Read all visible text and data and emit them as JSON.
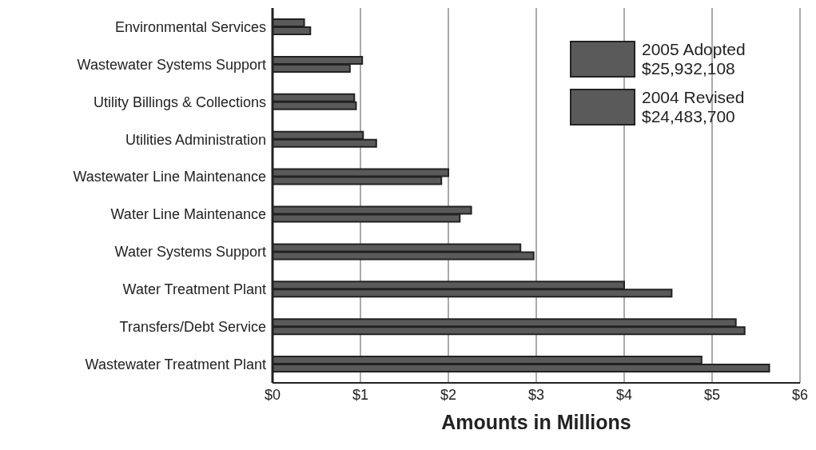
{
  "chart_data": {
    "type": "bar",
    "orientation": "horizontal",
    "xlabel": "Amounts in Millions",
    "categories": [
      "Environmental Services",
      "Wastewater Systems Support",
      "Utility Billings & Collections",
      "Utilities Administration",
      "Wastewater Line Maintenance",
      "Water Line Maintenance",
      "Water Systems Support",
      "Water Treatment Plant",
      "Transfers/Debt Service",
      "Wastewater Treatment Plant"
    ],
    "series": [
      {
        "name": "2004 Revised\n$24,483,700",
        "color": "#5a5a5a",
        "values": [
          0.36,
          1.02,
          0.93,
          1.03,
          2.0,
          2.26,
          2.82,
          4.0,
          5.27,
          4.88
        ]
      },
      {
        "name": "2005 Adopted\n$25,932,108",
        "color": "#5a5a5a",
        "values": [
          0.43,
          0.88,
          0.95,
          1.18,
          1.92,
          2.13,
          2.97,
          4.54,
          5.37,
          5.65
        ]
      }
    ],
    "xlim": [
      0,
      6
    ],
    "xticks": [
      {
        "value": 0,
        "label": "$0"
      },
      {
        "value": 1,
        "label": "$1"
      },
      {
        "value": 2,
        "label": "$2"
      },
      {
        "value": 3,
        "label": "$3"
      },
      {
        "value": 4,
        "label": "$4"
      },
      {
        "value": 5,
        "label": "$5"
      },
      {
        "value": 6,
        "label": "$6"
      }
    ],
    "grid": "x",
    "legend": "top right"
  }
}
